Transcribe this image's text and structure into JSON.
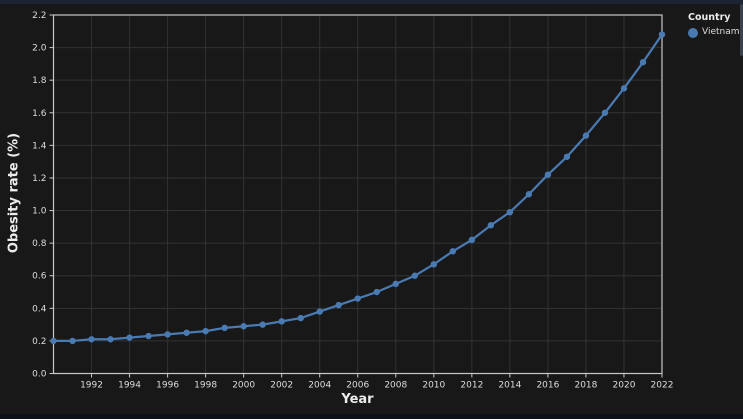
{
  "window": {
    "top_band_color": "#1c2433",
    "bottom_band_color": "#0e1118",
    "scrollbar_color": "#39404e",
    "background_color": "#181819"
  },
  "chart_data": {
    "type": "line",
    "title": "",
    "xlabel": "Year",
    "ylabel": "Obesity rate (%)",
    "xlim": [
      1990,
      2022
    ],
    "ylim": [
      0,
      2.2
    ],
    "grid": true,
    "x_ticks": [
      1992,
      1994,
      1996,
      1998,
      2000,
      2002,
      2004,
      2006,
      2008,
      2010,
      2012,
      2014,
      2016,
      2018,
      2020,
      2022
    ],
    "y_tick_labels": [
      "0.0",
      "0.2",
      "0.4",
      "0.6",
      "0.8",
      "1.0",
      "1.2",
      "1.4",
      "1.6",
      "1.8",
      "2.0",
      "2.2"
    ],
    "legend": {
      "title": "Country",
      "position": "top-right"
    },
    "colors": {
      "grid": "#323232",
      "spine": "#c9c9c9",
      "tick_label": "#dcdcdc",
      "axis_label": "#ececec"
    },
    "series": [
      {
        "name": "Vietnam",
        "color": "#4a7ab2",
        "x": [
          1990,
          1991,
          1992,
          1993,
          1994,
          1995,
          1996,
          1997,
          1998,
          1999,
          2000,
          2001,
          2002,
          2003,
          2004,
          2005,
          2006,
          2007,
          2008,
          2009,
          2010,
          2011,
          2012,
          2013,
          2014,
          2015,
          2016,
          2017,
          2018,
          2019,
          2020,
          2021,
          2022
        ],
        "values": [
          0.2,
          0.2,
          0.21,
          0.21,
          0.22,
          0.23,
          0.24,
          0.25,
          0.26,
          0.28,
          0.29,
          0.3,
          0.32,
          0.34,
          0.38,
          0.42,
          0.46,
          0.5,
          0.55,
          0.6,
          0.67,
          0.75,
          0.82,
          0.91,
          0.99,
          1.1,
          1.22,
          1.33,
          1.46,
          1.6,
          1.75,
          1.91,
          2.08
        ]
      }
    ]
  }
}
